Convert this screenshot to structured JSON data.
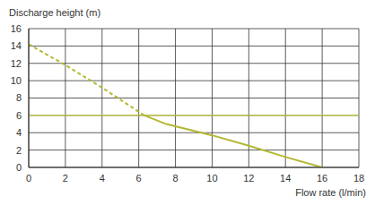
{
  "chart_data": {
    "type": "line",
    "y_label": "Discharge height (m)",
    "x_label": "Flow rate (l/min)",
    "x": [
      0,
      2,
      4,
      6.3,
      7.5,
      10,
      12,
      14,
      16,
      18
    ],
    "series": [
      {
        "color": "#c9cc3f",
        "line_style": "solid",
        "values": [
          6,
          6,
          6,
          6,
          6,
          6,
          6,
          6,
          6,
          6
        ]
      },
      {
        "color": "#b3b832",
        "line_style": "dashed",
        "values": [
          14.2,
          11.8,
          9.2,
          6,
          null,
          null,
          null,
          null,
          null,
          null
        ]
      },
      {
        "color": "#b3b832",
        "line_style": "solid",
        "values": [
          null,
          null,
          null,
          6,
          5,
          3.7,
          2.5,
          1.2,
          0,
          null
        ]
      }
    ],
    "xlim": [
      0,
      18
    ],
    "xticks": [
      0,
      2,
      4,
      6,
      8,
      10,
      12,
      14,
      16,
      18
    ],
    "ylim": [
      0,
      16
    ],
    "yticks": [
      0,
      2,
      4,
      6,
      8,
      10,
      12,
      14,
      16
    ],
    "grid": true
  }
}
